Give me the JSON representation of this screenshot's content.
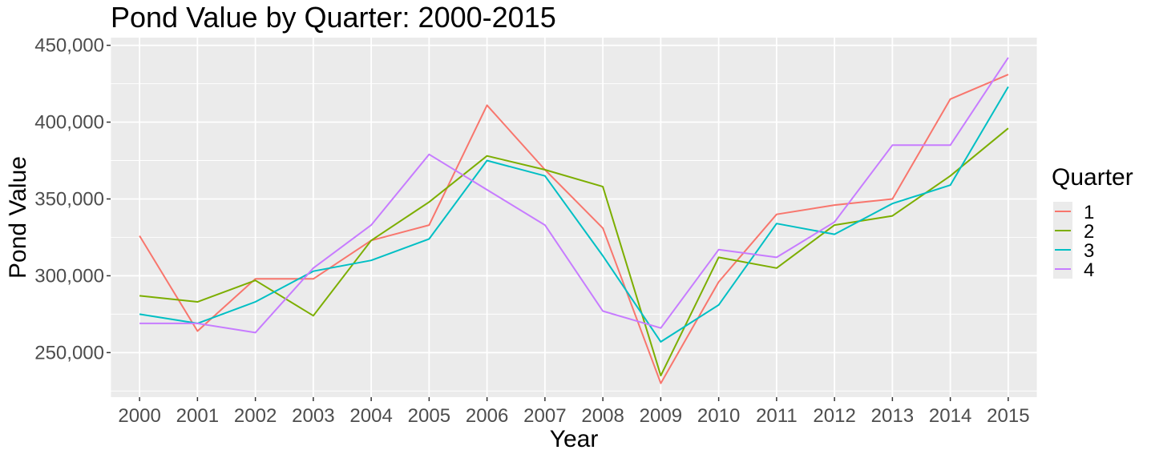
{
  "chart_data": {
    "type": "line",
    "title": "Pond Value by Quarter: 2000-2015",
    "xlabel": "Year",
    "ylabel": "Pond Value",
    "x": [
      2000,
      2001,
      2002,
      2003,
      2004,
      2005,
      2006,
      2007,
      2008,
      2009,
      2010,
      2011,
      2012,
      2013,
      2014,
      2015
    ],
    "xlim": [
      1999.5,
      2015.5
    ],
    "ylim": [
      221000,
      455000
    ],
    "yticks": [
      250000,
      300000,
      350000,
      400000,
      450000
    ],
    "ytick_labels": [
      "250,000",
      "300,000",
      "350,000",
      "400,000",
      "450,000"
    ],
    "grid": true,
    "legend": {
      "title": "Quarter",
      "position": "right"
    },
    "background_color": "#ebebeb",
    "grid_color": "#ffffff",
    "series": [
      {
        "name": "1",
        "color": "#f8766d",
        "values": [
          326000,
          264000,
          298000,
          298000,
          323000,
          333000,
          411000,
          369000,
          331000,
          230000,
          296000,
          340000,
          346000,
          350000,
          415000,
          431000
        ]
      },
      {
        "name": "2",
        "color": "#7cae00",
        "values": [
          287000,
          283000,
          297000,
          274000,
          323000,
          348000,
          378000,
          369000,
          358000,
          235000,
          312000,
          305000,
          333000,
          339000,
          365000,
          396000
        ]
      },
      {
        "name": "3",
        "color": "#00bfc4",
        "values": [
          275000,
          269000,
          283000,
          303000,
          310000,
          324000,
          375000,
          365000,
          313000,
          257000,
          281000,
          334000,
          327000,
          347000,
          359000,
          423000
        ]
      },
      {
        "name": "4",
        "color": "#c77cff",
        "values": [
          269000,
          269000,
          263000,
          305000,
          333000,
          379000,
          356000,
          333000,
          277000,
          266000,
          317000,
          312000,
          335000,
          385000,
          385000,
          442000
        ]
      }
    ]
  }
}
